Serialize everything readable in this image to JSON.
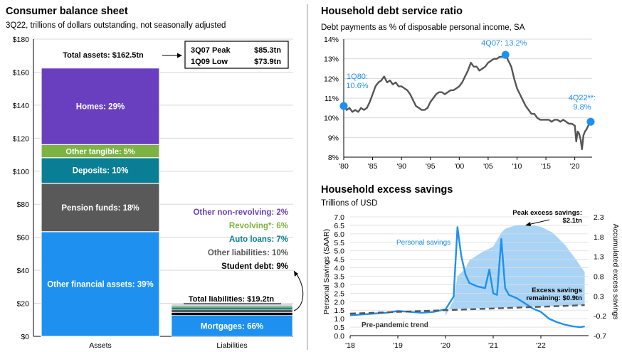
{
  "chart_data": [
    {
      "type": "bar",
      "title": "Consumer balance sheet",
      "subtitle": "3Q22, trillions of dollars outstanding, not seasonally adjusted",
      "ylim": [
        0,
        180
      ],
      "yticks": [
        "$0",
        "$20",
        "$40",
        "$60",
        "$80",
        "$100",
        "$120",
        "$140",
        "$160",
        "$180"
      ],
      "yticks_values": [
        0,
        20,
        40,
        60,
        80,
        100,
        120,
        140,
        160,
        180
      ],
      "categories": [
        "Assets",
        "Liabilities"
      ],
      "total_assets_label": "Total assets: $162.5tn",
      "total_liabilities_label": "Total liabilities: $19.2tn",
      "total_assets": 162.5,
      "total_liabilities": 19.2,
      "peak_box": [
        {
          "name": "3Q07 Peak",
          "value": "$85.3tn"
        },
        {
          "name": "1Q09 Low",
          "value": "$73.9tn"
        }
      ],
      "assets": [
        {
          "label": "Other financial assets: 39%",
          "value": 63.4,
          "color": "#1e90f0"
        },
        {
          "label": "Pension funds: 18%",
          "value": 29.3,
          "color": "#595959"
        },
        {
          "label": "Deposits: 10%",
          "value": 15.5,
          "color": "#0a7e94"
        },
        {
          "label": "Other tangible: 5%",
          "value": 7.9,
          "color": "#7cb342"
        },
        {
          "label": "Homes: 29%",
          "value": 46.4,
          "color": "#6a3fbf"
        }
      ],
      "liabilities": [
        {
          "label": "Mortgages: 66%",
          "value": 12.7,
          "color": "#1e90f0"
        },
        {
          "label": "Student debt: 9%",
          "value": 1.7,
          "color": "#000000"
        },
        {
          "label": "Other liabilities: 10%",
          "value": 1.9,
          "color": "#595959"
        },
        {
          "label": "Auto loans: 7%",
          "value": 1.4,
          "color": "#0a7e94"
        },
        {
          "label": "Revolving*: 6%",
          "value": 1.1,
          "color": "#7cb342"
        },
        {
          "label": "Other non-revolving: 2%",
          "value": 0.4,
          "color": "#6a3fbf"
        }
      ]
    },
    {
      "type": "line",
      "title": "Household debt service ratio",
      "subtitle": "Debt payments as % of disposable personal income, SA",
      "ylim": [
        8,
        14
      ],
      "yticks": [
        "8%",
        "9%",
        "10%",
        "11%",
        "12%",
        "13%",
        "14%"
      ],
      "yticks_values": [
        8,
        9,
        10,
        11,
        12,
        13,
        14
      ],
      "xlim": [
        1980,
        2023
      ],
      "xticks": [
        "'80",
        "'85",
        "'90",
        "'95",
        "'00",
        "'05",
        "'10",
        "'15",
        "'20"
      ],
      "xticks_values": [
        1980,
        1985,
        1990,
        1995,
        2000,
        2005,
        2010,
        2015,
        2020
      ],
      "color": "#555555",
      "points": [
        [
          1980,
          10.6
        ],
        [
          1980.5,
          10.4
        ],
        [
          1981,
          10.5
        ],
        [
          1981.5,
          10.3
        ],
        [
          1982,
          10.4
        ],
        [
          1982.5,
          10.3
        ],
        [
          1983,
          10.5
        ],
        [
          1983.5,
          10.4
        ],
        [
          1984,
          10.5
        ],
        [
          1984.5,
          10.8
        ],
        [
          1985,
          11.2
        ],
        [
          1985.5,
          11.6
        ],
        [
          1986,
          11.8
        ],
        [
          1986.5,
          11.9
        ],
        [
          1987,
          12.1
        ],
        [
          1987.5,
          11.8
        ],
        [
          1988,
          11.9
        ],
        [
          1988.5,
          11.7
        ],
        [
          1989,
          11.8
        ],
        [
          1989.5,
          11.6
        ],
        [
          1990,
          11.6
        ],
        [
          1990.5,
          11.5
        ],
        [
          1991,
          11.4
        ],
        [
          1991.5,
          11.2
        ],
        [
          1992,
          10.9
        ],
        [
          1992.5,
          10.6
        ],
        [
          1993,
          10.5
        ],
        [
          1993.5,
          10.4
        ],
        [
          1994,
          10.4
        ],
        [
          1994.5,
          10.5
        ],
        [
          1995,
          10.8
        ],
        [
          1995.5,
          11.0
        ],
        [
          1996,
          11.2
        ],
        [
          1996.5,
          11.3
        ],
        [
          1997,
          11.3
        ],
        [
          1997.5,
          11.2
        ],
        [
          1998,
          11.3
        ],
        [
          1998.5,
          11.4
        ],
        [
          1999,
          11.4
        ],
        [
          1999.5,
          11.5
        ],
        [
          2000,
          11.6
        ],
        [
          2000.5,
          11.8
        ],
        [
          2001,
          12.1
        ],
        [
          2001.5,
          12.4
        ],
        [
          2002,
          12.8
        ],
        [
          2002.5,
          12.6
        ],
        [
          2003,
          12.6
        ],
        [
          2003.5,
          12.4
        ],
        [
          2004,
          12.5
        ],
        [
          2004.5,
          12.6
        ],
        [
          2005,
          12.8
        ],
        [
          2005.5,
          12.9
        ],
        [
          2006,
          13.0
        ],
        [
          2006.5,
          13.0
        ],
        [
          2007,
          13.1
        ],
        [
          2007.5,
          13.1
        ],
        [
          2008,
          13.2
        ],
        [
          2008.5,
          12.9
        ],
        [
          2009,
          12.6
        ],
        [
          2009.5,
          12.0
        ],
        [
          2010,
          11.5
        ],
        [
          2010.5,
          11.2
        ],
        [
          2011,
          10.9
        ],
        [
          2011.5,
          10.6
        ],
        [
          2012,
          10.4
        ],
        [
          2012.5,
          10.2
        ],
        [
          2013,
          10.2
        ],
        [
          2013.5,
          10.0
        ],
        [
          2014,
          9.9
        ],
        [
          2014.5,
          9.9
        ],
        [
          2015,
          9.9
        ],
        [
          2015.5,
          9.9
        ],
        [
          2016,
          9.8
        ],
        [
          2016.5,
          9.9
        ],
        [
          2017,
          9.9
        ],
        [
          2017.5,
          9.8
        ],
        [
          2018,
          9.9
        ],
        [
          2018.5,
          9.8
        ],
        [
          2019,
          9.7
        ],
        [
          2019.5,
          9.7
        ],
        [
          2020,
          9.6
        ],
        [
          2020.25,
          8.8
        ],
        [
          2020.5,
          9.3
        ],
        [
          2020.75,
          9.2
        ],
        [
          2021,
          8.9
        ],
        [
          2021.25,
          8.4
        ],
        [
          2021.5,
          9.1
        ],
        [
          2021.75,
          9.3
        ],
        [
          2022,
          9.4
        ],
        [
          2022.5,
          9.7
        ],
        [
          2022.75,
          9.8
        ]
      ],
      "annotations": [
        {
          "label": "1Q80:",
          "value_label": "10.6%",
          "x": 1980,
          "y": 10.6
        },
        {
          "label": "4Q07:",
          "value_label": "13.2%",
          "x": 2008,
          "y": 13.2
        },
        {
          "label": "4Q22**:",
          "value_label": "9.8%",
          "x": 2022.75,
          "y": 9.8
        }
      ]
    },
    {
      "type": "line",
      "title": "Household excess savings",
      "subtitle": "Trillions of USD",
      "ylabel": "Personal Savings (SAAR)",
      "y2label": "Accumulated excess savings",
      "ylim": [
        0,
        7
      ],
      "yticks": [
        "0.0",
        "0.5",
        "1.0",
        "1.5",
        "2.0",
        "2.5",
        "3.0",
        "3.5",
        "4.0",
        "4.5",
        "5.0",
        "5.5",
        "6.0",
        "6.5",
        "7.0"
      ],
      "yticks_values": [
        0,
        0.5,
        1,
        1.5,
        2,
        2.5,
        3,
        3.5,
        4,
        4.5,
        5,
        5.5,
        6,
        6.5,
        7
      ],
      "y2ticks": [
        "-0.7",
        "-0.2",
        "0.3",
        "0.8",
        "1.3",
        "1.8",
        "2.3"
      ],
      "y2ticks_values": [
        -0.7,
        -0.2,
        0.3,
        0.8,
        1.3,
        1.8,
        2.3
      ],
      "xlim": [
        2018,
        2023
      ],
      "xticks": [
        "'18",
        "'19",
        "'20",
        "'21",
        "'22"
      ],
      "xticks_values": [
        2018,
        2019,
        2020,
        2021,
        2022
      ],
      "series": [
        {
          "name": "Personal savings",
          "color": "#1e90f0",
          "points": [
            [
              2018,
              1.2
            ],
            [
              2018.25,
              1.25
            ],
            [
              2018.5,
              1.3
            ],
            [
              2018.75,
              1.35
            ],
            [
              2019,
              1.45
            ],
            [
              2019.25,
              1.4
            ],
            [
              2019.5,
              1.35
            ],
            [
              2019.75,
              1.4
            ],
            [
              2020,
              1.55
            ],
            [
              2020.17,
              2.3
            ],
            [
              2020.25,
              6.4
            ],
            [
              2020.33,
              4.7
            ],
            [
              2020.42,
              3.6
            ],
            [
              2020.5,
              3.1
            ],
            [
              2020.67,
              2.9
            ],
            [
              2020.83,
              2.8
            ],
            [
              2020.92,
              3.9
            ],
            [
              2021,
              2.5
            ],
            [
              2021.08,
              2.4
            ],
            [
              2021.17,
              5.7
            ],
            [
              2021.25,
              2.8
            ],
            [
              2021.33,
              2.4
            ],
            [
              2021.5,
              2.2
            ],
            [
              2021.67,
              1.9
            ],
            [
              2021.83,
              1.6
            ],
            [
              2022,
              1.4
            ],
            [
              2022.17,
              1.0
            ],
            [
              2022.33,
              0.8
            ],
            [
              2022.5,
              0.65
            ],
            [
              2022.67,
              0.55
            ],
            [
              2022.83,
              0.5
            ],
            [
              2022.92,
              0.55
            ]
          ]
        },
        {
          "name": "Pre-pandemic trend",
          "color": "#555555",
          "points": [
            [
              2018,
              1.3
            ],
            [
              2019,
              1.4
            ],
            [
              2020,
              1.5
            ],
            [
              2021,
              1.6
            ],
            [
              2022,
              1.7
            ],
            [
              2022.92,
              1.8
            ]
          ]
        },
        {
          "name": "Accumulated excess savings",
          "axis": "right",
          "color": "#a9d4f5",
          "points": [
            [
              2020,
              -0.2
            ],
            [
              2020.17,
              0.2
            ],
            [
              2020.25,
              0.8
            ],
            [
              2020.42,
              1.0
            ],
            [
              2020.5,
              1.2
            ],
            [
              2020.75,
              1.4
            ],
            [
              2021,
              1.55
            ],
            [
              2021.17,
              1.9
            ],
            [
              2021.25,
              2.0
            ],
            [
              2021.5,
              2.1
            ],
            [
              2021.75,
              2.1
            ],
            [
              2022,
              2.05
            ],
            [
              2022.25,
              1.9
            ],
            [
              2022.5,
              1.6
            ],
            [
              2022.75,
              1.2
            ],
            [
              2022.92,
              0.9
            ]
          ]
        }
      ],
      "annotations": [
        {
          "label": "Peak excess savings:",
          "value_label": "$2.1tn"
        },
        {
          "label": "Excess savings",
          "value_label": "remaining: $0.9tn"
        }
      ]
    }
  ]
}
